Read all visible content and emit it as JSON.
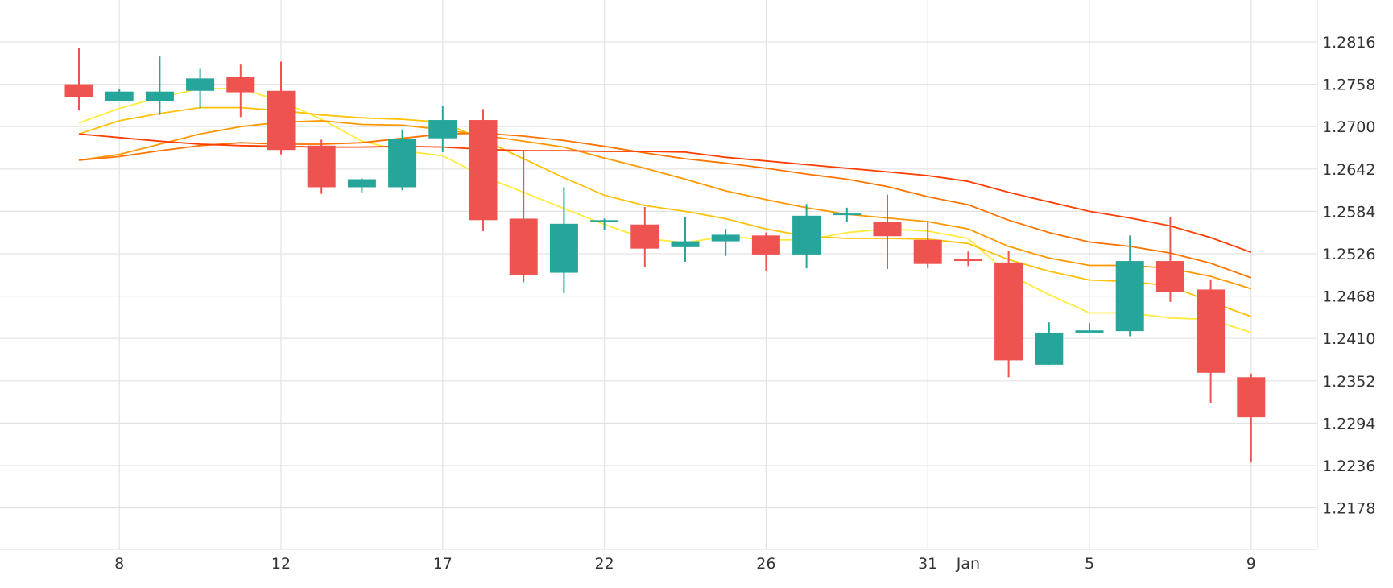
{
  "chart_data": {
    "type": "candlestick",
    "title": "",
    "xlabel": "",
    "ylabel": "",
    "y_axis_position": "right",
    "grid": true,
    "ylim": [
      1.212,
      1.288
    ],
    "y_ticks": [
      "1.2816",
      "1.2758",
      "1.2700",
      "1.2642",
      "1.2584",
      "1.2526",
      "1.2468",
      "1.2410",
      "1.2352",
      "1.2294",
      "1.2236",
      "1.2178"
    ],
    "x_ticks": [
      {
        "label": "8",
        "slot": 1
      },
      {
        "label": "12",
        "slot": 5
      },
      {
        "label": "17",
        "slot": 9
      },
      {
        "label": "22",
        "slot": 13
      },
      {
        "label": "26",
        "slot": 17
      },
      {
        "label": "31",
        "slot": 21
      },
      {
        "label": "Jan",
        "slot": 22
      },
      {
        "label": "5",
        "slot": 25
      },
      {
        "label": "9",
        "slot": 29
      }
    ],
    "up_color": "#26a69a",
    "down_color": "#ef5350",
    "candles": [
      {
        "slot": 0,
        "o": 1.2758,
        "h": 1.2808,
        "l": 1.2722,
        "c": 1.2741
      },
      {
        "slot": 1,
        "o": 1.2735,
        "h": 1.2752,
        "l": 1.2735,
        "c": 1.2748
      },
      {
        "slot": 2,
        "o": 1.2735,
        "h": 1.2796,
        "l": 1.2716,
        "c": 1.2748
      },
      {
        "slot": 3,
        "o": 1.2749,
        "h": 1.2779,
        "l": 1.2725,
        "c": 1.2766
      },
      {
        "slot": 4,
        "o": 1.2768,
        "h": 1.2785,
        "l": 1.2713,
        "c": 1.2747
      },
      {
        "slot": 5,
        "o": 1.2749,
        "h": 1.2789,
        "l": 1.2662,
        "c": 1.2668
      },
      {
        "slot": 6,
        "o": 1.2674,
        "h": 1.2682,
        "l": 1.2608,
        "c": 1.2617
      },
      {
        "slot": 7,
        "o": 1.2617,
        "h": 1.2629,
        "l": 1.261,
        "c": 1.2628
      },
      {
        "slot": 8,
        "o": 1.2617,
        "h": 1.2696,
        "l": 1.2613,
        "c": 1.2683
      },
      {
        "slot": 9,
        "o": 1.2684,
        "h": 1.2728,
        "l": 1.2665,
        "c": 1.2709
      },
      {
        "slot": 10,
        "o": 1.2709,
        "h": 1.2724,
        "l": 1.2557,
        "c": 1.2572
      },
      {
        "slot": 11,
        "o": 1.2574,
        "h": 1.2666,
        "l": 1.2487,
        "c": 1.2497
      },
      {
        "slot": 12,
        "o": 1.25,
        "h": 1.2617,
        "l": 1.2472,
        "c": 1.2567
      },
      {
        "slot": 13,
        "o": 1.257,
        "h": 1.2574,
        "l": 1.2559,
        "c": 1.2572
      },
      {
        "slot": 14,
        "o": 1.2566,
        "h": 1.259,
        "l": 1.2508,
        "c": 1.2533
      },
      {
        "slot": 15,
        "o": 1.2535,
        "h": 1.2576,
        "l": 1.2515,
        "c": 1.2543
      },
      {
        "slot": 16,
        "o": 1.2543,
        "h": 1.256,
        "l": 1.2523,
        "c": 1.2552
      },
      {
        "slot": 17,
        "o": 1.2551,
        "h": 1.2555,
        "l": 1.2502,
        "c": 1.2525
      },
      {
        "slot": 18,
        "o": 1.2525,
        "h": 1.2594,
        "l": 1.2506,
        "c": 1.2578
      },
      {
        "slot": 19,
        "o": 1.2579,
        "h": 1.2589,
        "l": 1.2569,
        "c": 1.2581
      },
      {
        "slot": 20,
        "o": 1.2569,
        "h": 1.2607,
        "l": 1.2505,
        "c": 1.255
      },
      {
        "slot": 21,
        "o": 1.2545,
        "h": 1.2569,
        "l": 1.2506,
        "c": 1.2512
      },
      {
        "slot": 22,
        "o": 1.2519,
        "h": 1.2529,
        "l": 1.2509,
        "c": 1.2516
      },
      {
        "slot": 23,
        "o": 1.2514,
        "h": 1.253,
        "l": 1.2357,
        "c": 1.238
      },
      {
        "slot": 24,
        "o": 1.2374,
        "h": 1.2432,
        "l": 1.2374,
        "c": 1.2418
      },
      {
        "slot": 25,
        "o": 1.2418,
        "h": 1.2431,
        "l": 1.2418,
        "c": 1.2421
      },
      {
        "slot": 26,
        "o": 1.242,
        "h": 1.2551,
        "l": 1.2413,
        "c": 1.2516
      },
      {
        "slot": 27,
        "o": 1.2516,
        "h": 1.2576,
        "l": 1.246,
        "c": 1.2474
      },
      {
        "slot": 28,
        "o": 1.2477,
        "h": 1.2491,
        "l": 1.2322,
        "c": 1.2363
      },
      {
        "slot": 29,
        "o": 1.2357,
        "h": 1.2362,
        "l": 1.224,
        "c": 1.2302
      }
    ],
    "series": [
      {
        "color": "#ffeb3b",
        "slots": [
          0,
          1,
          2,
          3,
          4,
          5,
          6,
          7,
          8,
          9,
          10,
          11,
          12,
          13,
          14,
          15,
          16,
          17,
          18,
          19,
          20,
          21,
          22,
          23,
          24,
          25,
          26,
          27,
          28,
          29
        ],
        "values": [
          1.2705,
          1.2725,
          1.274,
          1.2752,
          1.2752,
          1.2735,
          1.271,
          1.268,
          1.2667,
          1.266,
          1.2632,
          1.261,
          1.2588,
          1.2566,
          1.2547,
          1.2541,
          1.255,
          1.2545,
          1.2545,
          1.2555,
          1.256,
          1.2557,
          1.2547,
          1.2498,
          1.247,
          1.2445,
          1.2445,
          1.2438,
          1.2436,
          1.2418
        ]
      },
      {
        "color": "#ffc107",
        "slots": [
          0,
          1,
          2,
          3,
          4,
          5,
          6,
          7,
          8,
          9,
          10,
          11,
          12,
          13,
          14,
          15,
          16,
          17,
          18,
          19,
          20,
          21,
          22,
          23,
          24,
          25,
          26,
          27,
          28,
          29
        ],
        "values": [
          1.269,
          1.2708,
          1.2718,
          1.2726,
          1.2726,
          1.2722,
          1.2716,
          1.2712,
          1.271,
          1.2706,
          1.2682,
          1.2656,
          1.263,
          1.2606,
          1.2592,
          1.2584,
          1.2574,
          1.256,
          1.255,
          1.2547,
          1.2547,
          1.2546,
          1.254,
          1.2518,
          1.2502,
          1.249,
          1.2488,
          1.2482,
          1.246,
          1.244
        ]
      },
      {
        "color": "#ff9800",
        "slots": [
          0,
          1,
          2,
          3,
          4,
          5,
          6,
          7,
          8,
          9,
          10,
          11,
          12,
          13,
          14,
          15,
          16,
          17,
          18,
          19,
          20,
          21,
          22,
          23,
          24,
          25,
          26,
          27,
          28,
          29
        ],
        "values": [
          1.2654,
          1.2662,
          1.2676,
          1.269,
          1.27,
          1.2706,
          1.2708,
          1.2703,
          1.2702,
          1.2696,
          1.2688,
          1.268,
          1.2672,
          1.2657,
          1.2643,
          1.2628,
          1.2612,
          1.26,
          1.2589,
          1.258,
          1.2575,
          1.257,
          1.256,
          1.2536,
          1.252,
          1.251,
          1.251,
          1.2506,
          1.2495,
          1.2478
        ]
      },
      {
        "color": "#ff7300",
        "slots": [
          0,
          1,
          2,
          3,
          4,
          5,
          6,
          7,
          8,
          9,
          10,
          11,
          12,
          13,
          14,
          15,
          16,
          17,
          18,
          19,
          20,
          21,
          22,
          23,
          24,
          25,
          26,
          27,
          28,
          29
        ],
        "values": [
          1.2654,
          1.2659,
          1.2667,
          1.2674,
          1.2678,
          1.2676,
          1.2676,
          1.2678,
          1.2684,
          1.269,
          1.2691,
          1.2687,
          1.2681,
          1.2673,
          1.2664,
          1.2656,
          1.265,
          1.2643,
          1.2635,
          1.2628,
          1.2618,
          1.2604,
          1.2593,
          1.2572,
          1.2555,
          1.2542,
          1.2536,
          1.2527,
          1.2513,
          1.2493
        ]
      },
      {
        "color": "#ff3d00",
        "slots": [
          0,
          1,
          2,
          3,
          4,
          5,
          6,
          7,
          8,
          9,
          10,
          11,
          12,
          13,
          14,
          15,
          16,
          17,
          18,
          19,
          20,
          21,
          22,
          23,
          24,
          25,
          26,
          27,
          28,
          29
        ],
        "values": [
          1.269,
          1.2685,
          1.268,
          1.2676,
          1.2674,
          1.2673,
          1.2672,
          1.2672,
          1.2673,
          1.2672,
          1.2669,
          1.2667,
          1.2667,
          1.2666,
          1.2666,
          1.2665,
          1.2658,
          1.2653,
          1.2648,
          1.2643,
          1.2638,
          1.2633,
          1.2625,
          1.261,
          1.2597,
          1.2584,
          1.2575,
          1.2564,
          1.2548,
          1.2528
        ]
      }
    ]
  }
}
